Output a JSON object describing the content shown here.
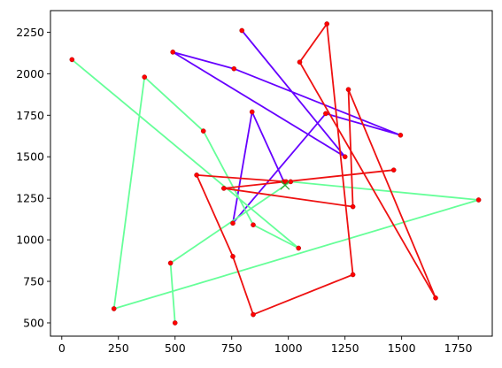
{
  "chart_data": {
    "type": "line",
    "title": "",
    "xlabel": "",
    "ylabel": "",
    "xlim": [
      -50,
      1900
    ],
    "ylim": [
      420,
      2380
    ],
    "xticks": [
      0,
      250,
      500,
      750,
      1000,
      1250,
      1500,
      1750
    ],
    "yticks": [
      500,
      750,
      1000,
      1250,
      1500,
      1750,
      2000,
      2250
    ],
    "grid": false,
    "legend": "none",
    "marker_color": "#ff0000",
    "center_marker": {
      "x": 985,
      "y": 1330,
      "color": "#2ca02c",
      "shape": "x"
    },
    "series": [
      {
        "color": "#6600ff",
        "x": [
          795,
          1250,
          490,
          760,
          1495,
          1165,
          755,
          840,
          980
        ],
        "y": [
          2260,
          1500,
          2130,
          2030,
          1630,
          1760,
          1100,
          1770,
          1350
        ]
      },
      {
        "color": "#66ff99",
        "x": [
          45,
          1045,
          845,
          625,
          365,
          230,
          1840,
          1010,
          480,
          500
        ],
        "y": [
          2085,
          950,
          1090,
          1655,
          1980,
          585,
          1240,
          1350,
          860,
          500
        ]
      },
      {
        "color": "#ee1111",
        "x": [
          1465,
          715,
          1285,
          1265,
          1650,
          1050,
          1170,
          1285,
          845,
          755,
          595,
          990
        ],
        "y": [
          1420,
          1310,
          1200,
          1905,
          650,
          2070,
          2300,
          790,
          550,
          900,
          1390,
          1350
        ]
      }
    ]
  }
}
